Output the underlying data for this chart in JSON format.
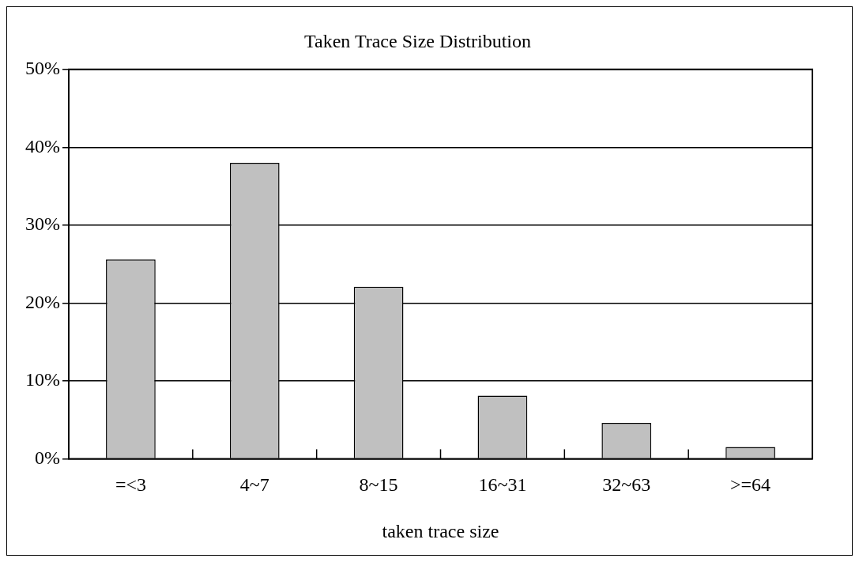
{
  "chart_data": {
    "type": "bar",
    "title": "Taken Trace Size Distribution",
    "xlabel": "taken trace size",
    "categories": [
      "=<3",
      "4~7",
      "8~15",
      "16~31",
      "32~63",
      ">=64"
    ],
    "values": [
      25.6,
      38.0,
      22.1,
      8.1,
      4.6,
      1.5
    ],
    "color": "#c0c0c0",
    "ylim": [
      0,
      50
    ],
    "yticks": [
      {
        "value": 0,
        "label": "0%"
      },
      {
        "value": 10,
        "label": "10%"
      },
      {
        "value": 20,
        "label": "20%"
      },
      {
        "value": 30,
        "label": "30%"
      },
      {
        "value": 40,
        "label": "40%"
      },
      {
        "value": 50,
        "label": "50%"
      }
    ],
    "grid": "y",
    "legend": false
  }
}
